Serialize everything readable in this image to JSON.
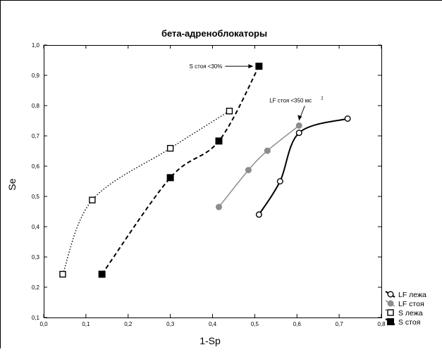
{
  "chart_data": {
    "type": "line",
    "title": "бета-адреноблокаторы",
    "xlabel": "1-Sp",
    "ylabel": "Se",
    "xlim": [
      0.0,
      0.8
    ],
    "ylim": [
      0.1,
      1.0
    ],
    "xticks": [
      "0,0",
      "0,1",
      "0,2",
      "0,3",
      "0,4",
      "0,5",
      "0,6",
      "0,7",
      "0,8"
    ],
    "yticks": [
      "0,1",
      "0,2",
      "0,3",
      "0,4",
      "0,5",
      "0,6",
      "0,7",
      "0,8",
      "0,9",
      "1,0"
    ],
    "grid": false,
    "legend_position": "bottom-right, outside plot",
    "series": [
      {
        "name": "LF лежа",
        "marker": "open-circle",
        "line": "solid-bold",
        "color": "#000000",
        "x": [
          0.51,
          0.56,
          0.605,
          0.72
        ],
        "y": [
          0.44,
          0.55,
          0.71,
          0.757
        ]
      },
      {
        "name": "LF стоя",
        "marker": "filled-circle",
        "line": "solid-thin",
        "color": "#8c8c8c",
        "x": [
          0.415,
          0.485,
          0.53,
          0.605
        ],
        "y": [
          0.465,
          0.587,
          0.651,
          0.734
        ]
      },
      {
        "name": "S лежа",
        "marker": "open-square",
        "line": "dotted",
        "color": "#000000",
        "x": [
          0.045,
          0.115,
          0.3,
          0.44
        ],
        "y": [
          0.243,
          0.488,
          0.659,
          0.782
        ]
      },
      {
        "name": "S стоя",
        "marker": "filled-square",
        "line": "dashed",
        "color": "#000000",
        "x": [
          0.138,
          0.3,
          0.415,
          0.51
        ],
        "y": [
          0.243,
          0.562,
          0.683,
          0.93
        ]
      }
    ],
    "annotations": [
      {
        "text": "S стоя <30%",
        "point_x": 0.51,
        "point_y": 0.93
      },
      {
        "text": "LF стоя <350 мс",
        "sup": "2",
        "point_x": 0.605,
        "point_y": 0.734
      }
    ]
  }
}
